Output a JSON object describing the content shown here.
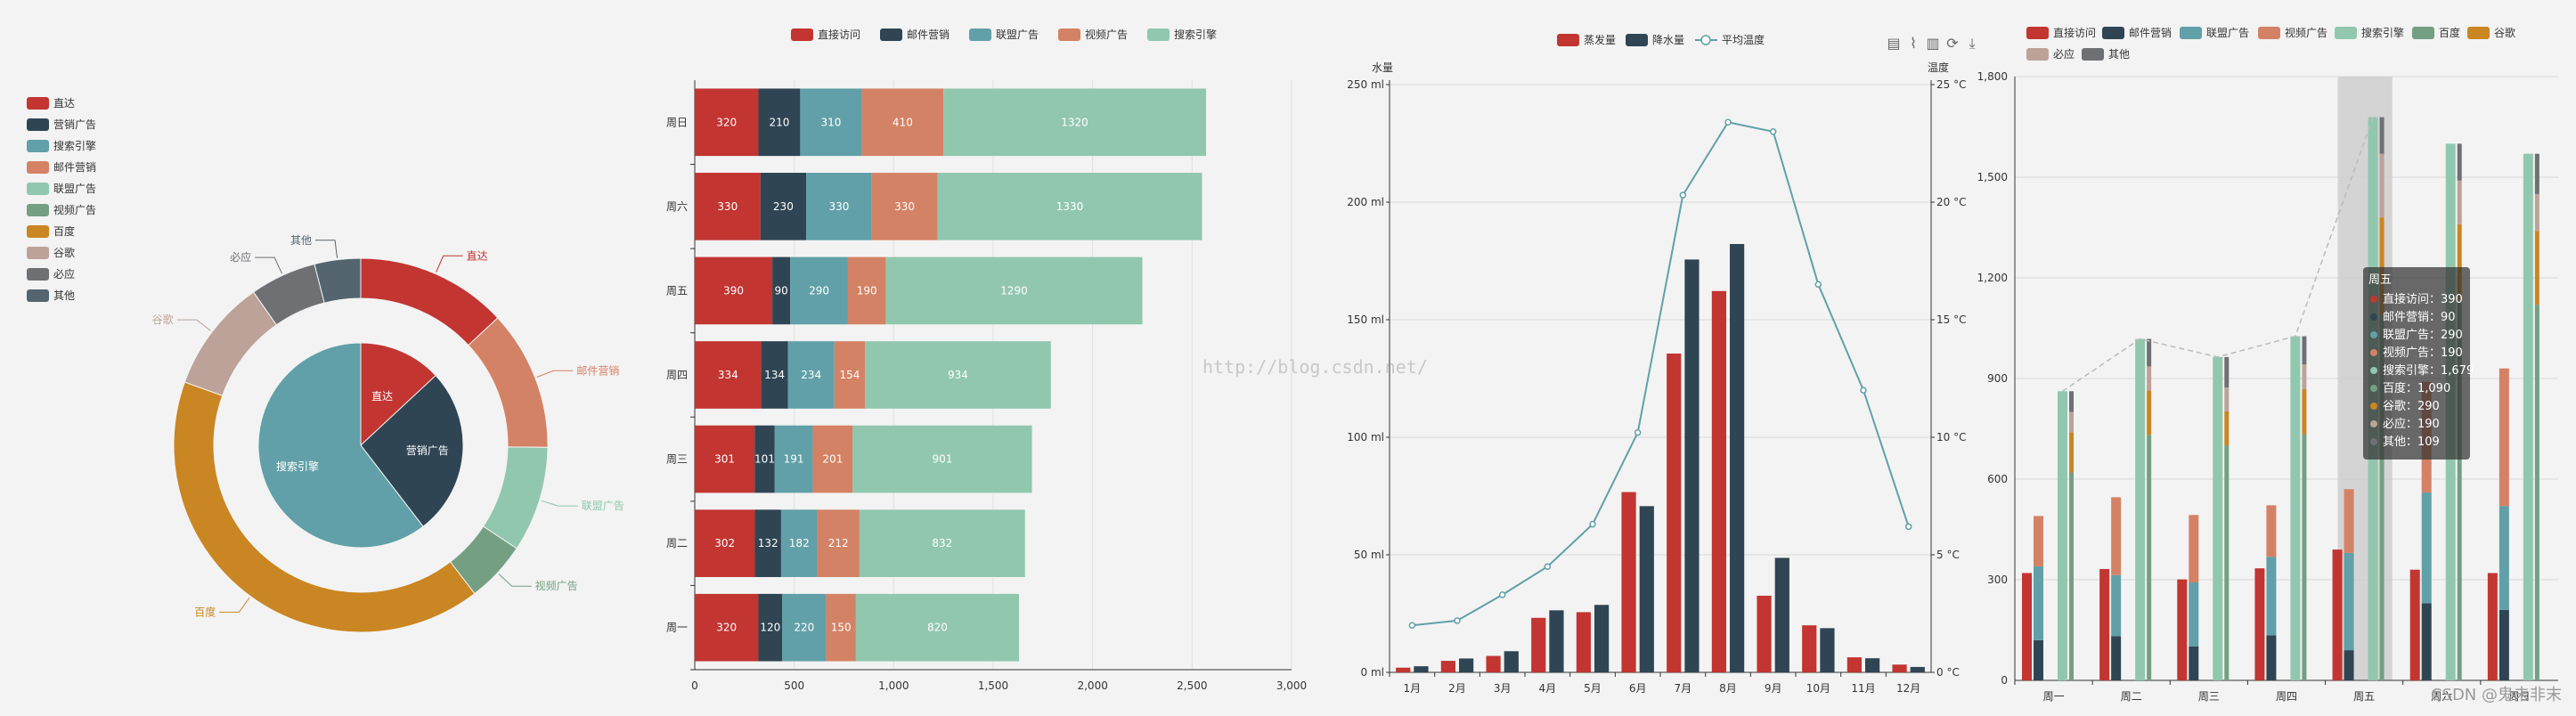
{
  "palette": {
    "red": "#c23531",
    "navy": "#2f4554",
    "teal": "#61a0a8",
    "orange": "#d48265",
    "mint": "#91c7ae",
    "green": "#749f83",
    "gold": "#ca8622",
    "rose": "#bda29a",
    "grey": "#6e7074",
    "slate": "#546570",
    "lightgrey": "#c4ccd3"
  },
  "watermark": "http://blog.csdn.net/",
  "csdn_badge": "CSDN @鬼未非末",
  "chart_data": [
    {
      "type": "pie",
      "title": "",
      "legend": [
        "直达",
        "营销广告",
        "搜索引擎",
        "邮件营销",
        "联盟广告",
        "视频广告",
        "百度",
        "谷歌",
        "必应",
        "其他"
      ],
      "inner": [
        {
          "name": "直达",
          "value": 335
        },
        {
          "name": "营销广告",
          "value": 679
        },
        {
          "name": "搜索引擎",
          "value": 1548
        }
      ],
      "outer": [
        {
          "name": "直达",
          "value": 335
        },
        {
          "name": "邮件营销",
          "value": 310
        },
        {
          "name": "联盟广告",
          "value": 234
        },
        {
          "name": "视频广告",
          "value": 135
        },
        {
          "name": "百度",
          "value": 1048
        },
        {
          "name": "谷歌",
          "value": 251
        },
        {
          "name": "必应",
          "value": 147
        },
        {
          "name": "其他",
          "value": 102
        }
      ]
    },
    {
      "type": "bar",
      "orientation": "horizontal-stacked",
      "legend": [
        "直接访问",
        "邮件营销",
        "联盟广告",
        "视频广告",
        "搜索引擎"
      ],
      "categories": [
        "周一",
        "周二",
        "周三",
        "周四",
        "周五",
        "周六",
        "周日"
      ],
      "series": [
        {
          "name": "直接访问",
          "values": [
            320,
            302,
            301,
            334,
            390,
            330,
            320
          ]
        },
        {
          "name": "邮件营销",
          "values": [
            120,
            132,
            101,
            134,
            90,
            230,
            210
          ]
        },
        {
          "name": "联盟广告",
          "values": [
            220,
            182,
            191,
            234,
            290,
            330,
            310
          ]
        },
        {
          "name": "视频广告",
          "values": [
            150,
            212,
            201,
            154,
            190,
            330,
            410
          ]
        },
        {
          "name": "搜索引擎",
          "values": [
            820,
            832,
            901,
            934,
            1290,
            1330,
            1320
          ]
        }
      ],
      "xlim": [
        0,
        3000
      ],
      "xticks": [
        "0",
        "500",
        "1,000",
        "1,500",
        "2,000",
        "2,500",
        "3,000"
      ]
    },
    {
      "type": "bar",
      "orientation": "vertical-with-line",
      "legend": [
        "蒸发量",
        "降水量",
        "平均温度"
      ],
      "categories": [
        "1月",
        "2月",
        "3月",
        "4月",
        "5月",
        "6月",
        "7月",
        "8月",
        "9月",
        "10月",
        "11月",
        "12月"
      ],
      "series": [
        {
          "name": "蒸发量",
          "values": [
            2.0,
            4.9,
            7.0,
            23.2,
            25.6,
            76.7,
            135.6,
            162.2,
            32.6,
            20.0,
            6.4,
            3.3
          ]
        },
        {
          "name": "降水量",
          "values": [
            2.6,
            5.9,
            9.0,
            26.4,
            28.7,
            70.7,
            175.6,
            182.2,
            48.7,
            18.8,
            6.0,
            2.3
          ]
        },
        {
          "name": "平均温度",
          "values": [
            2.0,
            2.2,
            3.3,
            4.5,
            6.3,
            10.2,
            20.3,
            23.4,
            23.0,
            16.5,
            12.0,
            6.2
          ]
        }
      ],
      "ylabel_left": "水量",
      "ylabel_right": "温度",
      "ylim_left": [
        0,
        250
      ],
      "ylim_right": [
        0,
        25
      ],
      "yticks_left": [
        "0 ml",
        "50 ml",
        "100 ml",
        "150 ml",
        "200 ml",
        "250 ml"
      ],
      "yticks_right": [
        "0 °C",
        "5 °C",
        "10 °C",
        "15 °C",
        "20 °C",
        "25 °C"
      ],
      "toolbox": [
        "data-view-icon",
        "line-icon",
        "bar-icon",
        "restore-icon",
        "download-icon"
      ]
    },
    {
      "type": "bar",
      "orientation": "vertical-grouped-stacked",
      "legend": [
        "直接访问",
        "邮件营销",
        "联盟广告",
        "视频广告",
        "搜索引擎",
        "百度",
        "谷歌",
        "必应",
        "其他"
      ],
      "categories": [
        "周一",
        "周二",
        "周三",
        "周四",
        "周五",
        "周六",
        "周日"
      ],
      "direct": [
        320,
        332,
        301,
        334,
        390,
        330,
        320
      ],
      "ad_stack": [
        {
          "name": "邮件营销",
          "values": [
            120,
            132,
            101,
            134,
            90,
            230,
            210
          ]
        },
        {
          "name": "联盟广告",
          "values": [
            220,
            182,
            191,
            234,
            290,
            330,
            310
          ]
        },
        {
          "name": "视频广告",
          "values": [
            150,
            232,
            201,
            154,
            190,
            330,
            410
          ]
        }
      ],
      "search_stack": [
        {
          "name": "搜索引擎",
          "values": [
            862,
            1018,
            964,
            1026,
            1679,
            1600,
            1570
          ]
        },
        {
          "name": "百度",
          "values": [
            620,
            732,
            701,
            734,
            1090,
            1130,
            1120
          ]
        },
        {
          "name": "谷歌",
          "values": [
            120,
            132,
            101,
            134,
            290,
            230,
            220
          ]
        },
        {
          "name": "必应",
          "values": [
            60,
            72,
            71,
            74,
            190,
            130,
            110
          ]
        },
        {
          "name": "其他",
          "values": [
            62,
            82,
            91,
            84,
            109,
            110,
            120
          ]
        }
      ],
      "ylim": [
        0,
        1800
      ],
      "yticks": [
        "0",
        "300",
        "600",
        "900",
        "1,200",
        "1,500",
        "1,800"
      ],
      "tooltip": {
        "title": "周五",
        "rows": [
          {
            "name": "直接访问",
            "value": "390"
          },
          {
            "name": "邮件营销",
            "value": "90"
          },
          {
            "name": "联盟广告",
            "value": "290"
          },
          {
            "name": "视频广告",
            "value": "190"
          },
          {
            "name": "搜索引擎",
            "value": "1,679"
          },
          {
            "name": "百度",
            "value": "1,090"
          },
          {
            "name": "谷歌",
            "value": "290"
          },
          {
            "name": "必应",
            "value": "190"
          },
          {
            "name": "其他",
            "value": "109"
          }
        ]
      }
    }
  ]
}
